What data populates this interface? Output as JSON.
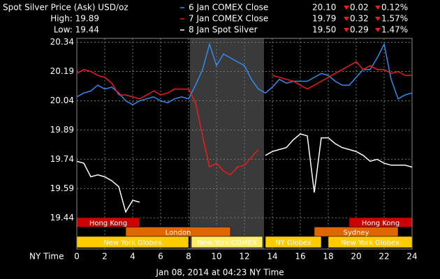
{
  "chart_data": {
    "type": "line",
    "title": "Spot Silver Price (Ask) USD/oz",
    "high": "High: 19.89",
    "low": "Low: 19.44",
    "x_label": "NY Time",
    "footer": "Jan 08, 2014 at 04:23 NY Time",
    "x": [
      0,
      0.5,
      1,
      1.5,
      2,
      2.5,
      3,
      3.5,
      4,
      4.5,
      5,
      5.5,
      6,
      6.5,
      7,
      7.5,
      8,
      8.5,
      9,
      9.5,
      10,
      10.5,
      11,
      11.5,
      12,
      12.5,
      13,
      13.5,
      14,
      14.5,
      15,
      15.5,
      16,
      16.5,
      17,
      17.5,
      18,
      18.5,
      19,
      19.5,
      20,
      20.5,
      21,
      21.5,
      22,
      22.5,
      23,
      23.5,
      24
    ],
    "series": [
      {
        "name": "6 Jan COMEX Close",
        "color": "#2f8cf0",
        "last": "20.10",
        "change": "0.02",
        "pct": "0.12%",
        "values": [
          20.06,
          20.08,
          20.09,
          20.12,
          20.1,
          20.11,
          20.08,
          20.04,
          20.02,
          20.04,
          20.05,
          20.06,
          20.04,
          20.03,
          20.05,
          20.06,
          20.05,
          20.12,
          20.2,
          20.33,
          20.22,
          20.28,
          20.26,
          20.24,
          20.22,
          20.15,
          20.1,
          20.08,
          20.11,
          20.15,
          20.13,
          20.14,
          20.14,
          20.14,
          20.16,
          20.18,
          20.17,
          20.14,
          20.12,
          20.12,
          20.16,
          20.2,
          20.2,
          20.26,
          20.33,
          20.15,
          20.05,
          20.07,
          20.08
        ]
      },
      {
        "name": "7 Jan COMEX Close",
        "color": "#ee1c1c",
        "last": "19.79",
        "change": "0.32",
        "pct": "1.57%",
        "values": [
          20.18,
          20.2,
          20.19,
          20.17,
          20.16,
          20.13,
          20.07,
          20.07,
          20.06,
          20.05,
          20.07,
          20.09,
          20.07,
          20.08,
          20.1,
          20.1,
          20.1,
          20.03,
          19.86,
          19.7,
          19.72,
          19.68,
          19.66,
          19.7,
          19.71,
          19.75,
          19.79,
          null,
          20.17,
          20.16,
          20.15,
          20.14,
          20.12,
          20.1,
          20.12,
          20.14,
          20.16,
          20.18,
          20.2,
          20.22,
          20.24,
          20.2,
          20.22,
          20.2,
          20.2,
          20.18,
          20.19,
          20.17,
          20.17
        ]
      },
      {
        "name": "8 Jan Spot Silver",
        "color": "#ffffff",
        "last": "19.50",
        "change": "0.29",
        "pct": "1.47%",
        "values": [
          19.73,
          19.72,
          19.65,
          19.66,
          19.65,
          19.63,
          19.6,
          19.47,
          19.53,
          19.52,
          null,
          null,
          null,
          null,
          null,
          null,
          null,
          null,
          null,
          null,
          null,
          null,
          null,
          null,
          null,
          null,
          null,
          19.76,
          19.78,
          19.79,
          19.8,
          19.84,
          19.87,
          19.86,
          19.57,
          19.85,
          19.85,
          19.82,
          19.8,
          19.79,
          19.78,
          19.76,
          19.73,
          19.74,
          19.72,
          19.71,
          19.71,
          19.71,
          19.7
        ]
      }
    ],
    "xlim": [
      0,
      24
    ],
    "xticks": [
      0,
      2,
      4,
      6,
      8,
      10,
      12,
      14,
      16,
      18,
      20,
      22,
      24
    ],
    "ylim": [
      19.28,
      20.36
    ],
    "yticks": [
      19.44,
      19.59,
      19.74,
      19.89,
      20.04,
      20.19,
      20.34
    ],
    "grid": true,
    "highlight_x": [
      8.1,
      13.4
    ],
    "sessions": [
      [
        {
          "label": "Hong Kong",
          "start": 0,
          "end": 4.5,
          "color": "#cc0000"
        },
        {
          "label": "Hong Kong",
          "start": 19.5,
          "end": 24,
          "color": "#cc0000"
        }
      ],
      [
        {
          "label": "London",
          "start": 3.5,
          "end": 11,
          "color": "#dd6600"
        },
        {
          "label": "Sydney",
          "start": 17,
          "end": 23,
          "color": "#dd6600"
        }
      ],
      [
        {
          "label": "New York Globex",
          "start": 0,
          "end": 8,
          "color": "#ffcc00"
        },
        {
          "label": "New York COMEX",
          "start": 8.2,
          "end": 13.3,
          "color": "#ffee66"
        },
        {
          "label": "NY Globex",
          "start": 13.5,
          "end": 17.5,
          "color": "#ffcc00"
        },
        {
          "label": "New York Globex",
          "start": 18,
          "end": 24,
          "color": "#ffcc00"
        }
      ]
    ]
  }
}
